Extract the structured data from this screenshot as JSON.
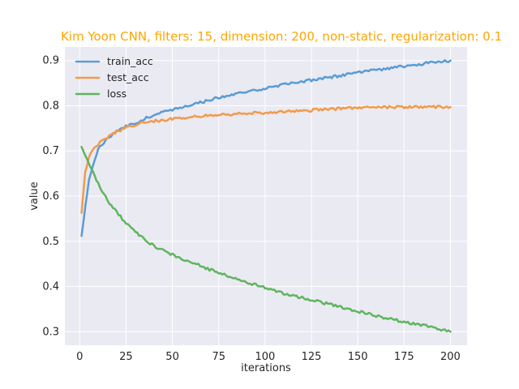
{
  "chart_data": {
    "type": "line",
    "title": "Kim Yoon CNN, filters: 15, dimension: 200, non-static, regularization: 0.1",
    "title_color": "#FFA500",
    "xlabel": "iterations",
    "ylabel": "value",
    "xlim": [
      -8,
      209
    ],
    "ylim": [
      0.27,
      0.93
    ],
    "xticks": [
      0,
      25,
      50,
      75,
      100,
      125,
      150,
      175,
      200
    ],
    "yticks": [
      0.3,
      0.4,
      0.5,
      0.6,
      0.7,
      0.8,
      0.9
    ],
    "grid": true,
    "legend_position": "upper-left",
    "background_color": "#EAEAF2",
    "series": [
      {
        "name": "train_acc",
        "color": "#5A9BD4",
        "points": [
          [
            1,
            0.512
          ],
          [
            5,
            0.635
          ],
          [
            10,
            0.705
          ],
          [
            15,
            0.728
          ],
          [
            20,
            0.743
          ],
          [
            25,
            0.755
          ],
          [
            30,
            0.762
          ],
          [
            40,
            0.78
          ],
          [
            50,
            0.792
          ],
          [
            60,
            0.802
          ],
          [
            75,
            0.818
          ],
          [
            90,
            0.83
          ],
          [
            100,
            0.839
          ],
          [
            110,
            0.847
          ],
          [
            125,
            0.857
          ],
          [
            140,
            0.866
          ],
          [
            150,
            0.873
          ],
          [
            160,
            0.879
          ],
          [
            175,
            0.888
          ],
          [
            185,
            0.893
          ],
          [
            190,
            0.896
          ],
          [
            200,
            0.9
          ]
        ]
      },
      {
        "name": "test_acc",
        "color": "#F29A4A",
        "points": [
          [
            1,
            0.563
          ],
          [
            3,
            0.655
          ],
          [
            5,
            0.685
          ],
          [
            8,
            0.708
          ],
          [
            12,
            0.724
          ],
          [
            18,
            0.738
          ],
          [
            25,
            0.752
          ],
          [
            35,
            0.763
          ],
          [
            50,
            0.771
          ],
          [
            75,
            0.78
          ],
          [
            100,
            0.785
          ],
          [
            125,
            0.79
          ],
          [
            150,
            0.796
          ],
          [
            175,
            0.797
          ],
          [
            200,
            0.797
          ]
        ]
      },
      {
        "name": "loss",
        "color": "#5FB55F",
        "points": [
          [
            1,
            0.709
          ],
          [
            5,
            0.67
          ],
          [
            10,
            0.627
          ],
          [
            15,
            0.59
          ],
          [
            20,
            0.565
          ],
          [
            25,
            0.54
          ],
          [
            30,
            0.52
          ],
          [
            40,
            0.49
          ],
          [
            50,
            0.47
          ],
          [
            60,
            0.454
          ],
          [
            75,
            0.43
          ],
          [
            90,
            0.41
          ],
          [
            100,
            0.397
          ],
          [
            110,
            0.385
          ],
          [
            125,
            0.37
          ],
          [
            140,
            0.356
          ],
          [
            150,
            0.345
          ],
          [
            160,
            0.335
          ],
          [
            175,
            0.322
          ],
          [
            190,
            0.31
          ],
          [
            200,
            0.3
          ]
        ]
      }
    ]
  }
}
